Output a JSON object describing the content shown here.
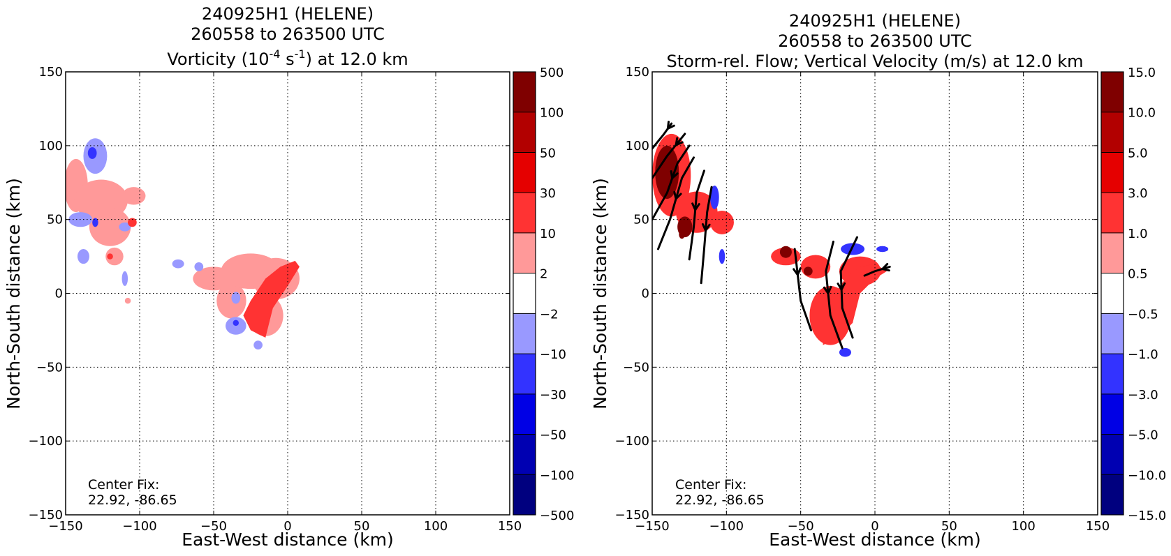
{
  "panels": [
    {
      "title_line1": "240925H1 (HELENE)",
      "title_line2": "260558 to 263500 UTC",
      "title_line3_parts": [
        "Vorticity (10",
        "-4",
        " s",
        "-1",
        ") at 12.0 km"
      ],
      "center_fix_label": "Center Fix:",
      "center_fix_value": "22.92, -86.65",
      "colorbar_labels": [
        "500",
        "100",
        "50",
        "30",
        "10",
        "2",
        "−2",
        "−10",
        "−30",
        "−50",
        "−100",
        "−500"
      ]
    },
    {
      "title_line1": "240925H1 (HELENE)",
      "title_line2": "260558 to 263500 UTC",
      "title_line3": "Storm-rel. Flow; Vertical Velocity (m/s) at 12.0 km",
      "center_fix_label": "Center Fix:",
      "center_fix_value": "22.92, -86.65",
      "colorbar_labels": [
        "15.0",
        "10.0",
        "5.0",
        "3.0",
        "1.0",
        "0.5",
        "−0.5",
        "−1.0",
        "−3.0",
        "−5.0",
        "−10.0",
        "−15.0"
      ]
    }
  ],
  "colorbar_colors": [
    "#7f0000",
    "#b20000",
    "#e50000",
    "#ff3333",
    "#ff9999",
    "#ffffff",
    "#9999ff",
    "#3333ff",
    "#0000e5",
    "#0000b2",
    "#00007f"
  ],
  "chart_data": [
    {
      "type": "heatmap",
      "title": "240925H1 (HELENE) 260558 to 263500 UTC Vorticity (10-4 s-1) at 12.0 km",
      "xlabel": "East-West distance (km)",
      "ylabel": "North-South distance (km)",
      "xlim": [
        -150,
        150
      ],
      "ylim": [
        -150,
        150
      ],
      "x_ticks": [
        -150,
        -100,
        -50,
        0,
        50,
        100,
        150
      ],
      "y_ticks": [
        -150,
        -100,
        -50,
        0,
        50,
        100,
        150
      ],
      "x_tick_labels": [
        "−150",
        "−100",
        "−50",
        "0",
        "50",
        "100",
        "150"
      ],
      "y_tick_labels": [
        "−150",
        "−100",
        "−50",
        "0",
        "50",
        "100",
        "150"
      ],
      "grid": true,
      "colorbar_levels": [
        -500,
        -100,
        -50,
        -30,
        -10,
        -2,
        2,
        10,
        30,
        50,
        100,
        500
      ],
      "blobs": [
        {
          "x": -130,
          "y": 93,
          "rx": 8,
          "ry": 12,
          "level": -2
        },
        {
          "x": -132,
          "y": 95,
          "rx": 3,
          "ry": 4,
          "level": -10
        },
        {
          "x": -143,
          "y": 73,
          "rx": 8,
          "ry": 18,
          "level": 2
        },
        {
          "x": -126,
          "y": 63,
          "rx": 18,
          "ry": 14,
          "level": 2
        },
        {
          "x": -104,
          "y": 66,
          "rx": 8,
          "ry": 6,
          "level": 2
        },
        {
          "x": -120,
          "y": 45,
          "rx": 14,
          "ry": 13,
          "level": 2
        },
        {
          "x": -117,
          "y": 25,
          "rx": 6,
          "ry": 6,
          "level": 2
        },
        {
          "x": -120,
          "y": 25,
          "rx": 2,
          "ry": 2,
          "level": 10
        },
        {
          "x": -105,
          "y": 48,
          "rx": 3,
          "ry": 3,
          "level": 10
        },
        {
          "x": -140,
          "y": 50,
          "rx": 8,
          "ry": 5,
          "level": -2
        },
        {
          "x": -130,
          "y": 48,
          "rx": 2,
          "ry": 3,
          "level": -10
        },
        {
          "x": -110,
          "y": 45,
          "rx": 4,
          "ry": 3,
          "level": -2
        },
        {
          "x": -138,
          "y": 25,
          "rx": 4,
          "ry": 5,
          "level": -2
        },
        {
          "x": -110,
          "y": 10,
          "rx": 2,
          "ry": 5,
          "level": -2
        },
        {
          "x": -108,
          "y": -5,
          "rx": 2,
          "ry": 2,
          "level": 2
        },
        {
          "x": -74,
          "y": 20,
          "rx": 4,
          "ry": 3,
          "level": -2
        },
        {
          "x": -50,
          "y": 10,
          "rx": 14,
          "ry": 8,
          "level": 2
        },
        {
          "x": -38,
          "y": -5,
          "rx": 10,
          "ry": 12,
          "level": 2
        },
        {
          "x": -25,
          "y": 15,
          "rx": 20,
          "ry": 12,
          "level": 2
        },
        {
          "x": -8,
          "y": 10,
          "rx": 16,
          "ry": 14,
          "level": 2
        },
        {
          "x": -15,
          "y": -15,
          "rx": 12,
          "ry": 14,
          "level": 2
        },
        {
          "x": -35,
          "y": -22,
          "rx": 7,
          "ry": 6,
          "level": -2
        },
        {
          "x": -35,
          "y": -20,
          "rx": 2,
          "ry": 2,
          "level": -10
        },
        {
          "x": -35,
          "y": -3,
          "rx": 3,
          "ry": 4,
          "level": -2
        },
        {
          "x": -20,
          "y": -35,
          "rx": 3,
          "ry": 3,
          "level": -2
        },
        {
          "x": -60,
          "y": 18,
          "rx": 3,
          "ry": 3,
          "level": -2
        }
      ],
      "strong_band": [
        [
          -25,
          -25
        ],
        [
          -15,
          -30
        ],
        [
          -10,
          -10
        ],
        [
          0,
          5
        ],
        [
          8,
          18
        ],
        [
          5,
          22
        ],
        [
          -5,
          18
        ],
        [
          -15,
          10
        ],
        [
          -25,
          -5
        ],
        [
          -30,
          -15
        ]
      ]
    },
    {
      "type": "heatmap",
      "title": "240925H1 (HELENE) 260558 to 263500 UTC Storm-rel. Flow; Vertical Velocity (m/s) at 12.0 km",
      "xlabel": "East-West distance (km)",
      "ylabel": "North-South distance (km)",
      "xlim": [
        -150,
        150
      ],
      "ylim": [
        -150,
        150
      ],
      "x_ticks": [
        -150,
        -100,
        -50,
        0,
        50,
        100,
        150
      ],
      "y_ticks": [
        -150,
        -100,
        -50,
        0,
        50,
        100,
        150
      ],
      "x_tick_labels": [
        "−150",
        "−100",
        "−50",
        "0",
        "50",
        "100",
        "150"
      ],
      "y_tick_labels": [
        "−150",
        "−100",
        "−50",
        "0",
        "50",
        "100",
        "150"
      ],
      "grid": true,
      "colorbar_levels": [
        -15.0,
        -10.0,
        -5.0,
        -3.0,
        -1.0,
        -0.5,
        0.5,
        1.0,
        3.0,
        5.0,
        10.0,
        15.0
      ],
      "blobs": [
        {
          "x": -137,
          "y": 80,
          "rx": 13,
          "ry": 28,
          "level": 2
        },
        {
          "x": -120,
          "y": 55,
          "rx": 14,
          "ry": 14,
          "level": 2
        },
        {
          "x": -103,
          "y": 48,
          "rx": 8,
          "ry": 8,
          "level": 2
        },
        {
          "x": -140,
          "y": 82,
          "rx": 8,
          "ry": 18,
          "level": 10
        },
        {
          "x": -128,
          "y": 45,
          "rx": 5,
          "ry": 7,
          "level": 10
        },
        {
          "x": -130,
          "y": 40,
          "rx": 2,
          "ry": 3,
          "level": 30
        },
        {
          "x": -108,
          "y": 65,
          "rx": 3,
          "ry": 8,
          "level": -2
        },
        {
          "x": -103,
          "y": 25,
          "rx": 2,
          "ry": 5,
          "level": -2
        },
        {
          "x": -60,
          "y": 25,
          "rx": 10,
          "ry": 6,
          "level": 2
        },
        {
          "x": -40,
          "y": 18,
          "rx": 10,
          "ry": 8,
          "level": 2
        },
        {
          "x": -60,
          "y": 28,
          "rx": 4,
          "ry": 4,
          "level": 10
        },
        {
          "x": -45,
          "y": 15,
          "rx": 3,
          "ry": 3,
          "level": 10
        },
        {
          "x": -15,
          "y": 30,
          "rx": 8,
          "ry": 4,
          "level": -2
        },
        {
          "x": 5,
          "y": 30,
          "rx": 4,
          "ry": 2,
          "level": -2
        },
        {
          "x": -20,
          "y": -40,
          "rx": 4,
          "ry": 3,
          "level": -2
        },
        {
          "x": -30,
          "y": -15,
          "rx": 14,
          "ry": 20,
          "level": 2
        },
        {
          "x": -10,
          "y": 15,
          "rx": 14,
          "ry": 10,
          "level": 2
        }
      ],
      "strong_band": [
        [
          -35,
          -35
        ],
        [
          -25,
          -30
        ],
        [
          -15,
          -20
        ],
        [
          -10,
          0
        ],
        [
          0,
          10
        ],
        [
          8,
          15
        ],
        [
          0,
          20
        ],
        [
          -10,
          18
        ],
        [
          -20,
          10
        ],
        [
          -30,
          -5
        ],
        [
          -35,
          -20
        ]
      ],
      "streamlines": [
        [
          [
            -150,
            98
          ],
          [
            -142,
            108
          ],
          [
            -137,
            115
          ]
        ],
        [
          [
            -150,
            78
          ],
          [
            -140,
            93
          ],
          [
            -128,
            108
          ]
        ],
        [
          [
            -150,
            50
          ],
          [
            -140,
            68
          ],
          [
            -133,
            88
          ],
          [
            -125,
            100
          ]
        ],
        [
          [
            -146,
            30
          ],
          [
            -138,
            50
          ],
          [
            -130,
            78
          ],
          [
            -122,
            92
          ]
        ],
        [
          [
            -125,
            23
          ],
          [
            -122,
            45
          ],
          [
            -120,
            68
          ],
          [
            -115,
            83
          ]
        ],
        [
          [
            -117,
            7
          ],
          [
            -115,
            30
          ],
          [
            -113,
            55
          ],
          [
            -110,
            72
          ]
        ],
        [
          [
            -43,
            -25
          ],
          [
            -50,
            -5
          ],
          [
            -54,
            30
          ]
        ],
        [
          [
            -22,
            -37
          ],
          [
            -30,
            -15
          ],
          [
            -33,
            15
          ],
          [
            -28,
            35
          ]
        ],
        [
          [
            -15,
            -30
          ],
          [
            -22,
            -10
          ],
          [
            -23,
            15
          ],
          [
            -12,
            38
          ]
        ],
        [
          [
            -7,
            12
          ],
          [
            0,
            15
          ],
          [
            10,
            18
          ]
        ]
      ]
    }
  ]
}
